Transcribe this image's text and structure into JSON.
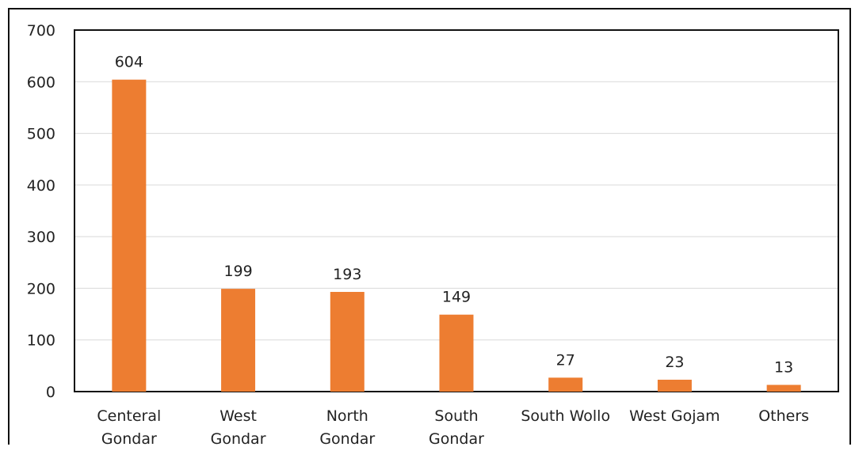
{
  "chart_data": {
    "type": "bar",
    "categories": [
      [
        "Centeral",
        "Gondar"
      ],
      [
        "West",
        "Gondar"
      ],
      [
        "North",
        "Gondar"
      ],
      [
        "South",
        "Gondar"
      ],
      [
        "South Wollo"
      ],
      [
        "West Gojam"
      ],
      [
        "Others"
      ]
    ],
    "values": [
      604,
      199,
      193,
      149,
      27,
      23,
      13
    ],
    "data_labels": [
      "604",
      "199",
      "193",
      "149",
      "27",
      "23",
      "13"
    ],
    "yticks": [
      "0",
      "100",
      "200",
      "300",
      "400",
      "500",
      "600",
      "700"
    ],
    "ylim": [
      0,
      700
    ],
    "grid": true,
    "legend": "none",
    "bar_color": "#ED7D31"
  }
}
